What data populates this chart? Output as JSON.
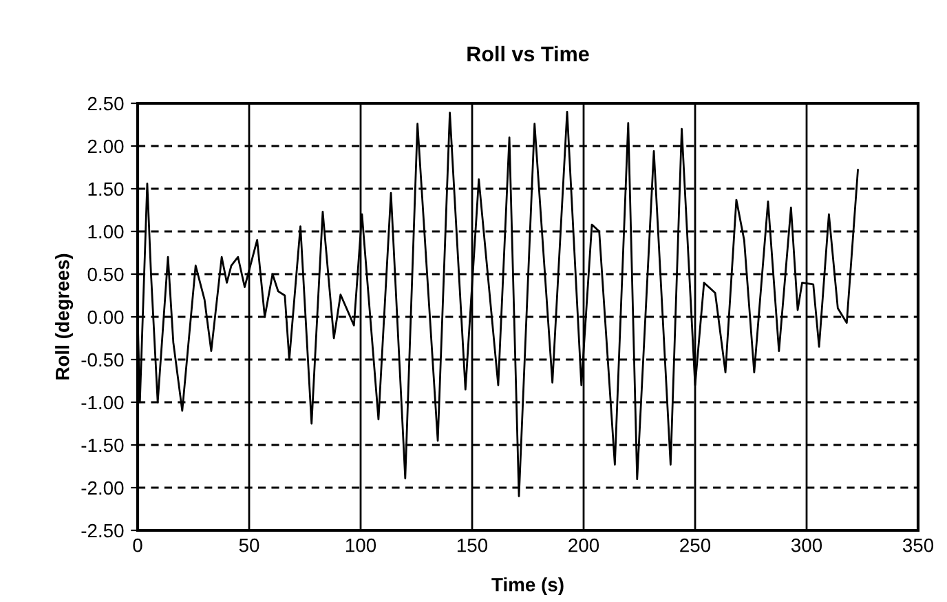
{
  "chart_data": {
    "type": "line",
    "title": "Roll vs Time",
    "xlabel": "Time (s)",
    "ylabel": "Roll (degrees)",
    "series": [
      {
        "color": "#000000",
        "x": [
          0,
          1,
          4.3,
          6,
          8,
          9,
          13.6,
          16,
          20,
          26,
          30,
          33,
          37.7,
          40,
          42,
          45,
          48,
          53.6,
          57,
          60.5,
          63,
          66,
          68,
          73,
          78,
          83,
          88,
          91,
          97,
          100.6,
          108,
          113.6,
          120,
          125.5,
          134.6,
          140,
          147,
          153,
          161.7,
          166.7,
          171,
          178,
          186,
          192.6,
          199,
          203.7,
          207,
          214,
          220,
          224,
          231.5,
          239,
          244,
          250,
          254,
          259,
          263.6,
          268.5,
          272,
          276.5,
          282.7,
          287.6,
          293,
          296,
          298,
          303,
          305.6,
          310,
          314,
          318,
          323
        ],
        "values": [
          0,
          -1.0,
          1.56,
          0.5,
          -0.5,
          -1.0,
          0.7,
          -0.3,
          -1.1,
          0.6,
          0.2,
          -0.4,
          0.7,
          0.4,
          0.6,
          0.7,
          0.35,
          0.9,
          0.0,
          0.5,
          0.3,
          0.25,
          -0.5,
          1.06,
          -1.25,
          1.23,
          -0.25,
          0.26,
          -0.1,
          1.2,
          -1.2,
          1.45,
          -1.89,
          2.26,
          -1.45,
          2.39,
          -0.85,
          1.61,
          -0.8,
          2.1,
          -2.1,
          2.26,
          -0.77,
          2.4,
          -0.8,
          1.08,
          1.0,
          -1.73,
          2.27,
          -1.9,
          1.94,
          -1.73,
          2.2,
          -0.8,
          0.4,
          0.28,
          -0.65,
          1.37,
          0.9,
          -0.65,
          1.35,
          -0.4,
          1.28,
          0.08,
          0.4,
          0.38,
          -0.35,
          1.2,
          0.1,
          -0.07,
          1.72
        ]
      }
    ],
    "xlim": [
      0,
      350
    ],
    "xticks": [
      0,
      50,
      100,
      150,
      200,
      250,
      300,
      350
    ],
    "ylim": [
      -2.5,
      2.5
    ],
    "yticks": [
      {
        "value": -2.5,
        "label": "-2.50"
      },
      {
        "value": -2,
        "label": "-2.00"
      },
      {
        "value": -1.5,
        "label": "-1.50"
      },
      {
        "value": -1,
        "label": "-1.00"
      },
      {
        "value": -0.5,
        "label": "-0.50"
      },
      {
        "value": 0,
        "label": "0.00"
      },
      {
        "value": 0.5,
        "label": "0.50"
      },
      {
        "value": 1,
        "label": "1.00"
      },
      {
        "value": 1.5,
        "label": "1.50"
      },
      {
        "value": 2,
        "label": "2.00"
      },
      {
        "value": 2.5,
        "label": "2.50"
      }
    ],
    "grid": true,
    "marker": "none",
    "line_style": "solid"
  }
}
